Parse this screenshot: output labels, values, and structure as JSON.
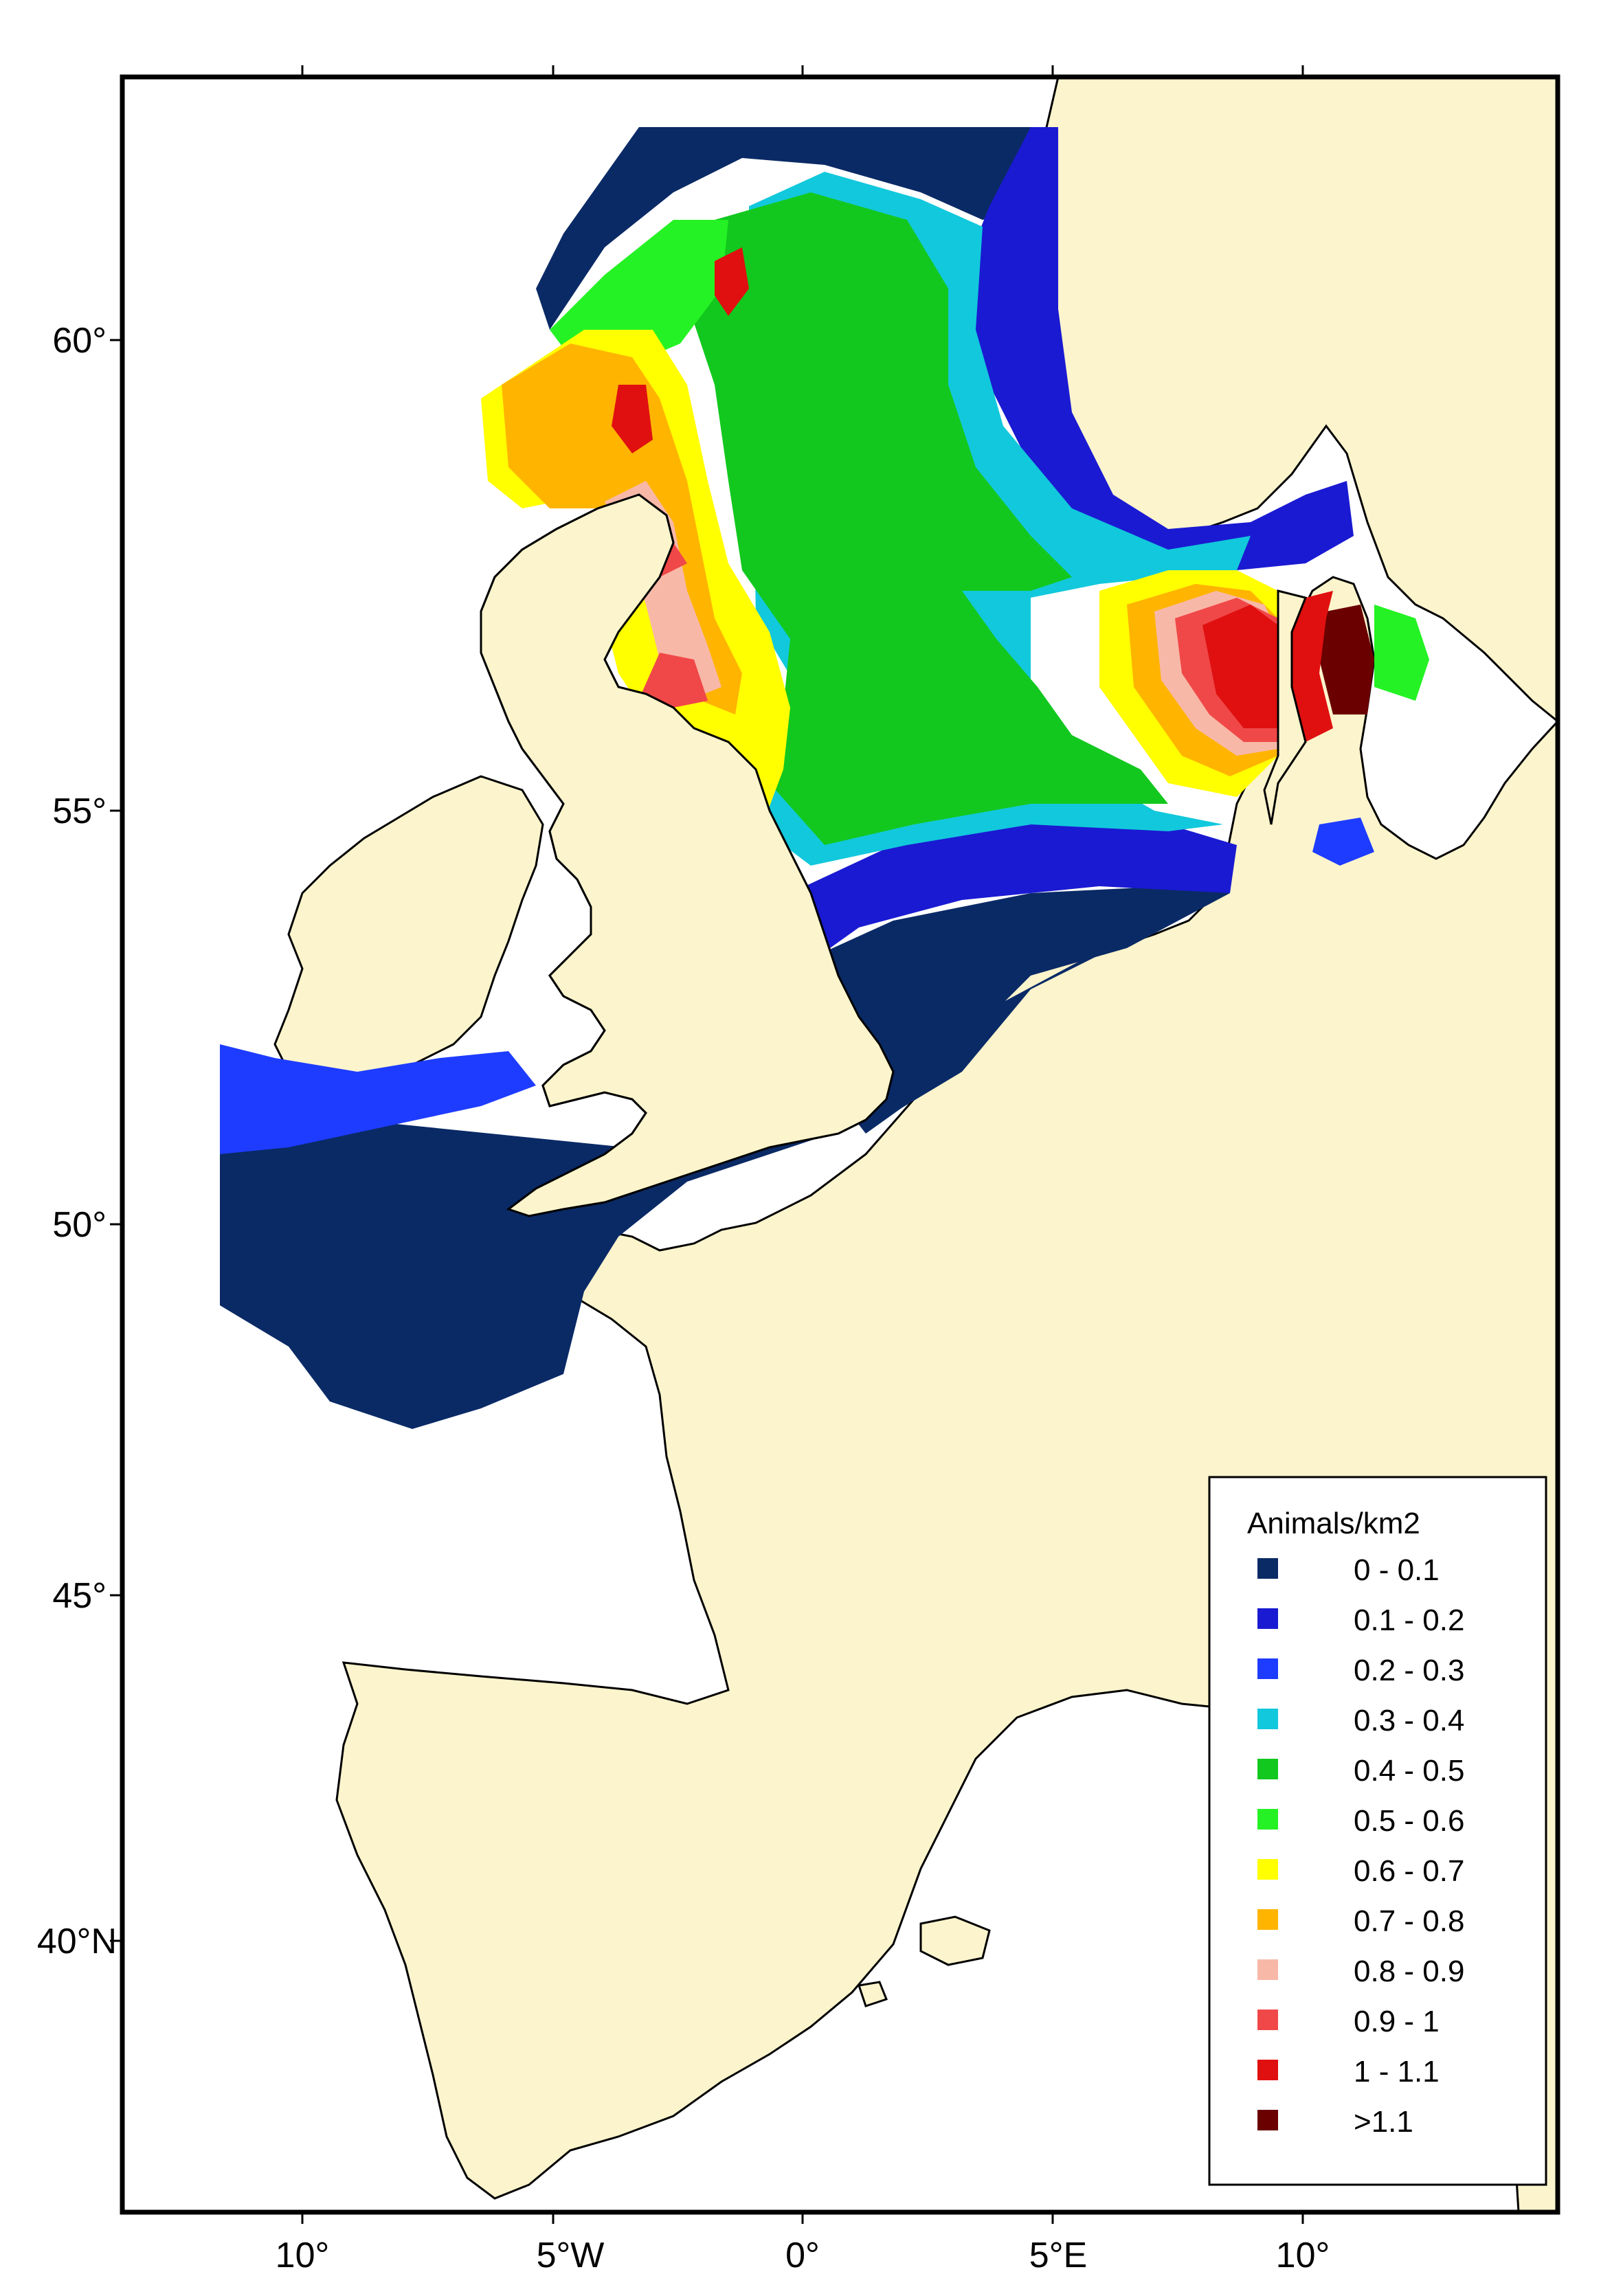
{
  "map": {
    "lat_labels": [
      "60°",
      "55°",
      "50°",
      "45°",
      "40°N"
    ],
    "lon_labels": [
      "10°",
      "5°W",
      "0°",
      "5°E",
      "10°"
    ]
  },
  "legend": {
    "title": "Animals/km2",
    "items": [
      {
        "label": "0 - 0.1",
        "color": "#0a2a66"
      },
      {
        "label": "0.1 - 0.2",
        "color": "#1a1ad2"
      },
      {
        "label": "0.2 - 0.3",
        "color": "#1e3cff"
      },
      {
        "label": "0.3 - 0.4",
        "color": "#12c8dc"
      },
      {
        "label": "0.4 - 0.5",
        "color": "#12c81e"
      },
      {
        "label": "0.5 - 0.6",
        "color": "#24f224"
      },
      {
        "label": "0.6 - 0.7",
        "color": "#ffff00"
      },
      {
        "label": "0.7 - 0.8",
        "color": "#ffb400"
      },
      {
        "label": "0.8 - 0.9",
        "color": "#f8b8a8"
      },
      {
        "label": "0.9 - 1",
        "color": "#f04848"
      },
      {
        "label": "1 - 1.1",
        "color": "#e01010"
      },
      {
        "label": ">1.1",
        "color": "#6a0000"
      }
    ]
  },
  "colors": {
    "land": "#fcf4cc",
    "sea": "#ffffff",
    "frame": "#000000"
  }
}
